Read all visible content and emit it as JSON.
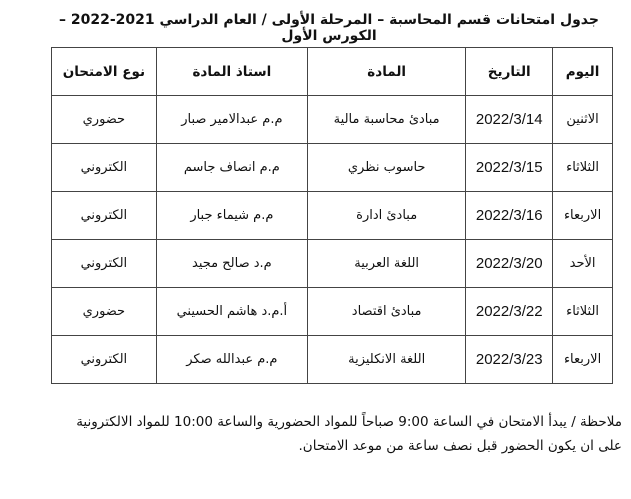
{
  "title": "جدول امتحانات قسم المحاسبة – المرحلة الأولى / العام الدراسي 2021-2022 – الكورس الأول",
  "headers": {
    "day": "اليوم",
    "date": "التاريخ",
    "subject": "المادة",
    "professor": "استاذ المادة",
    "exam_type": "نوع الامتحان"
  },
  "rows": [
    {
      "day": "الاثنين",
      "date": "2022/3/14",
      "subject": "مبادئ محاسبة مالية",
      "professor": "م.م عبدالامير صبار",
      "exam_type": "حضوري"
    },
    {
      "day": "الثلاثاء",
      "date": "2022/3/15",
      "subject": "حاسوب نظري",
      "professor": "م.م انصاف جاسم",
      "exam_type": "الكتروني"
    },
    {
      "day": "الاربعاء",
      "date": "2022/3/16",
      "subject": "مبادئ ادارة",
      "professor": "م.م شيماء جبار",
      "exam_type": "الكتروني"
    },
    {
      "day": "الأحد",
      "date": "2022/3/20",
      "subject": "اللغة العربية",
      "professor": "م.د صالح مجيد",
      "exam_type": "الكتروني"
    },
    {
      "day": "الثلاثاء",
      "date": "2022/3/22",
      "subject": "مبادئ اقتصاد",
      "professor": "أ.م.د هاشم الحسيني",
      "exam_type": "حضوري"
    },
    {
      "day": "الاربعاء",
      "date": "2022/3/23",
      "subject": "اللغة الانكليزية",
      "professor": "م.م عبدالله صكر",
      "exam_type": "الكتروني"
    }
  ],
  "note": {
    "line1": "ملاحظة / يبدأ الامتحان في الساعة 9:00 صباحاً للمواد الحضورية والساعة 10:00 للمواد الالكترونية",
    "line2": "على ان يكون الحضور قبل نصف ساعة من موعد الامتحان."
  }
}
